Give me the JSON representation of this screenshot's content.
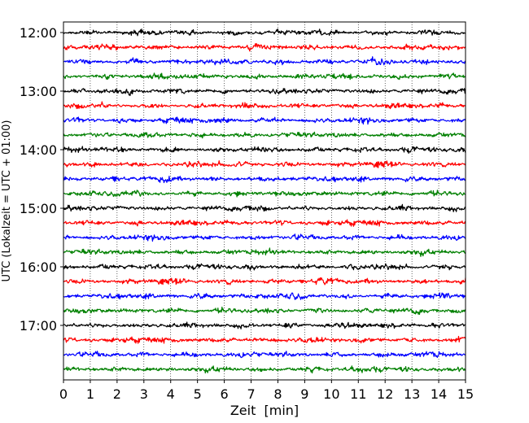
{
  "chart_data": {
    "type": "line",
    "description_kind": "helicorder seismogram",
    "xlabel": "Zeit  [min]",
    "ylabel": "UTC (Lokalzeit = UTC + 01:00)",
    "xlim": [
      0,
      15
    ],
    "x_ticks": [
      "0",
      "1",
      "2",
      "3",
      "4",
      "5",
      "6",
      "7",
      "8",
      "9",
      "10",
      "11",
      "12",
      "13",
      "14",
      "15"
    ],
    "y_tick_labels": [
      "12:00",
      "13:00",
      "14:00",
      "15:00",
      "16:00",
      "17:00"
    ],
    "trace_start_times": [
      "12:00",
      "12:15",
      "12:30",
      "12:45",
      "13:00",
      "13:15",
      "13:30",
      "13:45",
      "14:00",
      "14:15",
      "14:30",
      "14:45",
      "15:00",
      "15:15",
      "15:30",
      "15:45",
      "16:00",
      "16:15",
      "16:30",
      "16:45",
      "17:00",
      "17:15",
      "17:30",
      "17:45"
    ],
    "trace_colors": [
      "#000000",
      "#ff0000",
      "#0000ff",
      "#008000"
    ],
    "grid": "vertical dotted lines at each minute"
  }
}
